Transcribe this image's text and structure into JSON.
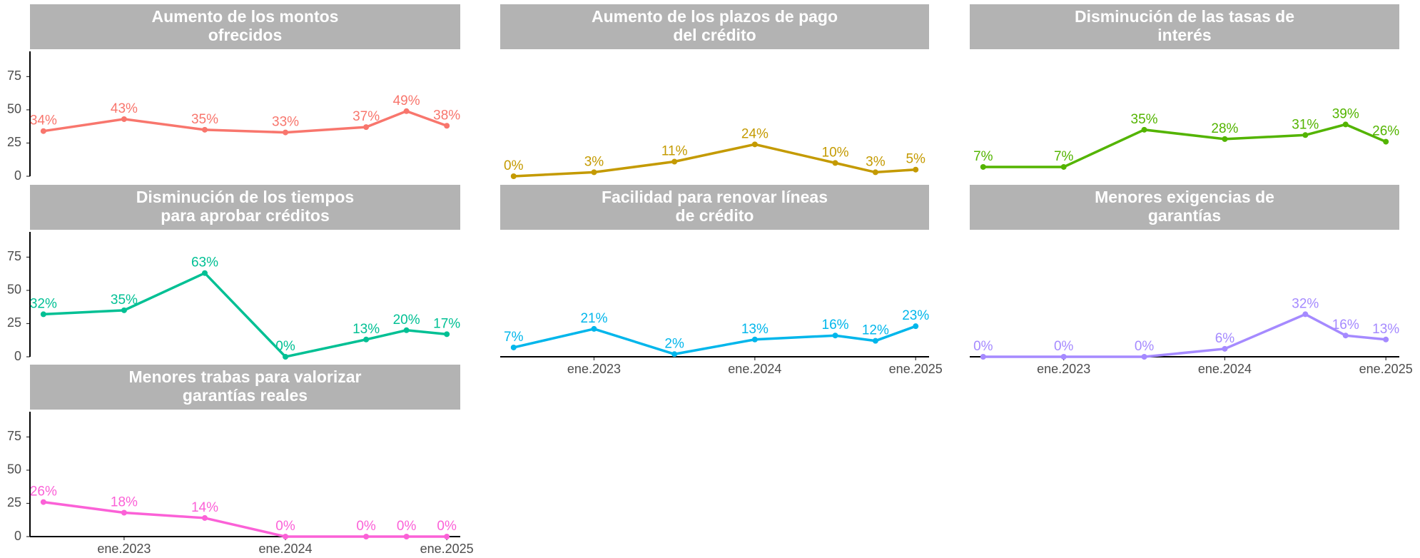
{
  "chart_data": [
    {
      "type": "line",
      "title": [
        "Aumento de los montos",
        "ofrecidos"
      ],
      "color": "#F8766D",
      "x": [
        "2022-07",
        "2023-01",
        "2023-07",
        "2024-01",
        "2024-07",
        "2024-10",
        "2025-01"
      ],
      "values": [
        34,
        43,
        35,
        33,
        37,
        49,
        38
      ],
      "value_labels": [
        "34%",
        "43%",
        "35%",
        "33%",
        "37%",
        "49%",
        "38%"
      ],
      "xlim": [
        "2022-06",
        "2025-02"
      ],
      "ylim": [
        0,
        94
      ],
      "yticks": [
        0,
        25,
        50,
        75
      ]
    },
    {
      "type": "line",
      "title": [
        "Aumento de los plazos de pago",
        "del crédito"
      ],
      "color": "#C49A00",
      "x": [
        "2022-07",
        "2023-01",
        "2023-07",
        "2024-01",
        "2024-07",
        "2024-10",
        "2025-01"
      ],
      "values": [
        0,
        3,
        11,
        24,
        10,
        3,
        5
      ],
      "value_labels": [
        "0%",
        "3%",
        "11%",
        "24%",
        "10%",
        "3%",
        "5%"
      ],
      "xlim": [
        "2022-06",
        "2025-02"
      ],
      "ylim": [
        0,
        94
      ]
    },
    {
      "type": "line",
      "title": [
        "Disminución de las tasas de",
        "interés"
      ],
      "color": "#53B400",
      "x": [
        "2022-07",
        "2023-01",
        "2023-07",
        "2024-01",
        "2024-07",
        "2024-10",
        "2025-01"
      ],
      "values": [
        7,
        7,
        35,
        28,
        31,
        39,
        26
      ],
      "value_labels": [
        "7%",
        "7%",
        "35%",
        "28%",
        "31%",
        "39%",
        "26%"
      ],
      "xlim": [
        "2022-06",
        "2025-02"
      ],
      "ylim": [
        0,
        94
      ]
    },
    {
      "type": "line",
      "title": [
        "Disminución de los tiempos",
        "para aprobar créditos"
      ],
      "color": "#00C094",
      "x": [
        "2022-07",
        "2023-01",
        "2023-07",
        "2024-01",
        "2024-07",
        "2024-10",
        "2025-01"
      ],
      "values": [
        32,
        35,
        63,
        0,
        13,
        20,
        17
      ],
      "value_labels": [
        "32%",
        "35%",
        "63%",
        "0%",
        "13%",
        "20%",
        "17%"
      ],
      "xlim": [
        "2022-06",
        "2025-02"
      ],
      "ylim": [
        0,
        94
      ],
      "yticks": [
        0,
        25,
        50,
        75
      ]
    },
    {
      "type": "line",
      "title": [
        "Facilidad para renovar líneas",
        "de crédito"
      ],
      "color": "#00B6EB",
      "x": [
        "2022-07",
        "2023-01",
        "2023-07",
        "2024-01",
        "2024-07",
        "2024-10",
        "2025-01"
      ],
      "values": [
        7,
        21,
        2,
        13,
        16,
        12,
        23
      ],
      "value_labels": [
        "7%",
        "21%",
        "2%",
        "13%",
        "16%",
        "12%",
        "23%"
      ],
      "xlim": [
        "2022-06",
        "2025-02"
      ],
      "ylim": [
        0,
        94
      ],
      "xticks": [
        {
          "value": "2023-01",
          "label": "ene.2023"
        },
        {
          "value": "2024-01",
          "label": "ene.2024"
        },
        {
          "value": "2025-01",
          "label": "ene.2025"
        }
      ]
    },
    {
      "type": "line",
      "title": [
        "Menores exigencias de",
        "garantías"
      ],
      "color": "#A58AFF",
      "x": [
        "2022-07",
        "2023-01",
        "2023-07",
        "2024-01",
        "2024-07",
        "2024-10",
        "2025-01"
      ],
      "values": [
        0,
        0,
        0,
        6,
        32,
        16,
        13
      ],
      "value_labels": [
        "0%",
        "0%",
        "0%",
        "6%",
        "32%",
        "16%",
        "13%"
      ],
      "xlim": [
        "2022-06",
        "2025-02"
      ],
      "ylim": [
        0,
        94
      ],
      "xticks": [
        {
          "value": "2023-01",
          "label": "ene.2023"
        },
        {
          "value": "2024-01",
          "label": "ene.2024"
        },
        {
          "value": "2025-01",
          "label": "ene.2025"
        }
      ]
    },
    {
      "type": "line",
      "title": [
        "Menores trabas para valorizar",
        "garantías reales"
      ],
      "color": "#FB61D7",
      "x": [
        "2022-07",
        "2023-01",
        "2023-07",
        "2024-01",
        "2024-07",
        "2024-10",
        "2025-01"
      ],
      "values": [
        26,
        18,
        14,
        0,
        0,
        0,
        0
      ],
      "value_labels": [
        "26%",
        "18%",
        "14%",
        "0%",
        "0%",
        "0%",
        "0%"
      ],
      "xlim": [
        "2022-06",
        "2025-02"
      ],
      "ylim": [
        0,
        94
      ],
      "yticks": [
        0,
        25,
        50,
        75
      ],
      "xticks": [
        {
          "value": "2023-01",
          "label": "ene.2023"
        },
        {
          "value": "2024-01",
          "label": "ene.2024"
        },
        {
          "value": "2025-01",
          "label": "ene.2025"
        }
      ]
    }
  ]
}
